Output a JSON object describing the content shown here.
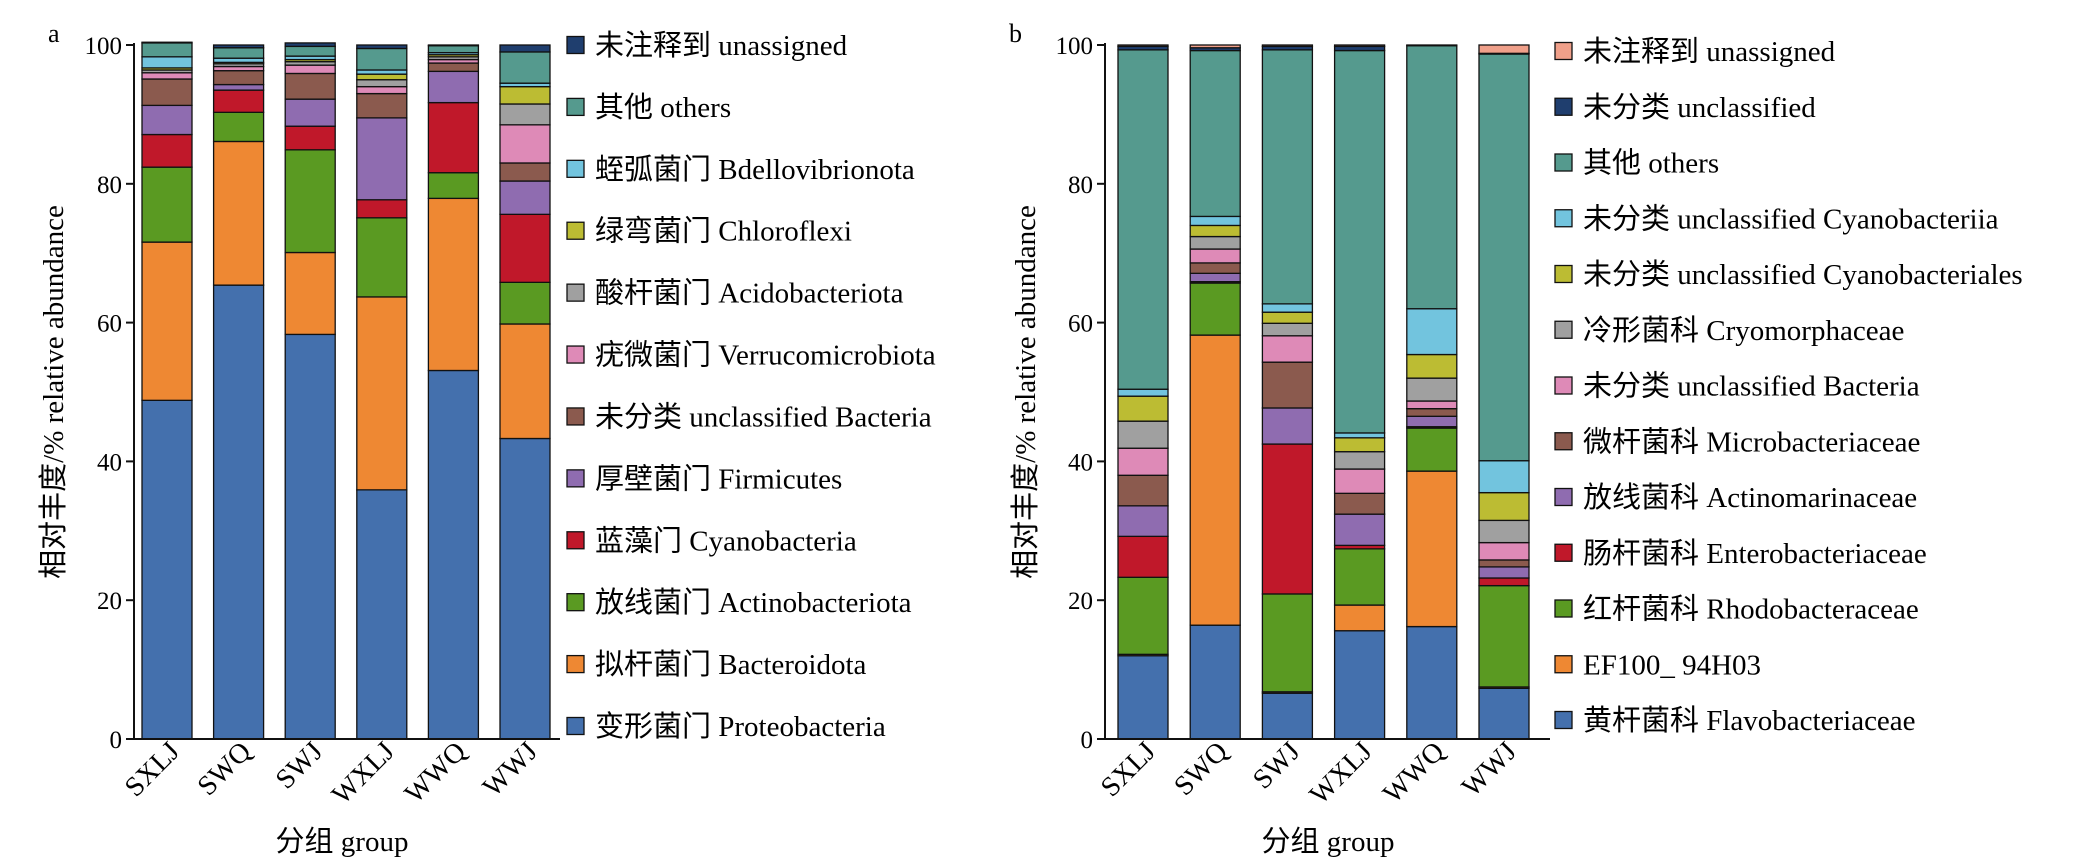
{
  "chart_data": [
    {
      "panel": "a",
      "type": "bar",
      "stacked": true,
      "categories": [
        "SXLJ",
        "SWQ",
        "SWJ",
        "WXLJ",
        "WWQ",
        "WWJ"
      ],
      "xlabel": "分组 group",
      "ylabel": "相对丰度/% relative abundance",
      "ylim": [
        0,
        100
      ],
      "yticks": [
        "0",
        "20",
        "40",
        "60",
        "80",
        "100"
      ],
      "grid": false,
      "legend_position": "right",
      "series": [
        {
          "name": "变形菌门 Proteobacteria",
          "color": "#4470ad",
          "values": [
            48.8,
            65.4,
            58.3,
            35.9,
            53.1,
            43.3
          ]
        },
        {
          "name": "拟杆菌门 Bacteroidota",
          "color": "#ee8833",
          "values": [
            22.8,
            20.7,
            11.8,
            27.8,
            24.8,
            16.5
          ]
        },
        {
          "name": "放线菌门 Actinobacteriota",
          "color": "#5a9a22",
          "values": [
            10.8,
            4.2,
            14.8,
            11.4,
            3.7,
            6.0
          ]
        },
        {
          "name": "蓝藻门 Cyanobacteria",
          "color": "#c0182a",
          "values": [
            4.7,
            3.2,
            3.4,
            2.6,
            10.1,
            9.8
          ]
        },
        {
          "name": "厚壁菌门 Firmicutes",
          "color": "#8f6cb0",
          "values": [
            4.2,
            0.8,
            3.9,
            11.8,
            4.5,
            4.8
          ]
        },
        {
          "name": "未分类 unclassified Bacteria",
          "color": "#8b5a4e",
          "values": [
            3.8,
            2.0,
            3.7,
            3.5,
            1.2,
            2.6
          ]
        },
        {
          "name": "疣微菌门 Verrucomicrobiota",
          "color": "#de8ab7",
          "values": [
            0.9,
            0.6,
            1.2,
            1.0,
            0.5,
            5.5
          ]
        },
        {
          "name": "酸杆菌门 Acidobacteriota",
          "color": "#a0a0a0",
          "values": [
            0.4,
            0.4,
            0.5,
            1.0,
            0.4,
            3.0
          ]
        },
        {
          "name": "绿弯菌门 Chloroflexi",
          "color": "#bcbc33",
          "values": [
            0.3,
            0.2,
            0.3,
            0.8,
            0.3,
            2.5
          ]
        },
        {
          "name": "蛭弧菌门 Bdellovibrionota",
          "color": "#72c4de",
          "values": [
            1.6,
            0.6,
            0.5,
            0.6,
            0.3,
            0.5
          ]
        },
        {
          "name": "其他 others",
          "color": "#559a8e",
          "values": [
            2.0,
            1.5,
            1.4,
            3.1,
            1.0,
            4.5
          ]
        },
        {
          "name": "未注释到 unassigned",
          "color": "#1f3e6e",
          "values": [
            0.1,
            0.4,
            0.5,
            0.5,
            0.1,
            1.0
          ]
        }
      ]
    },
    {
      "panel": "b",
      "type": "bar",
      "stacked": true,
      "categories": [
        "SXLJ",
        "SWQ",
        "SWJ",
        "WXLJ",
        "WWQ",
        "WWJ"
      ],
      "xlabel": "分组 group",
      "ylabel": "相对丰度/% relative abundance",
      "ylim": [
        0,
        100
      ],
      "yticks": [
        "0",
        "20",
        "40",
        "60",
        "80",
        "100"
      ],
      "grid": false,
      "legend_position": "right",
      "series": [
        {
          "name": "黄杆菌科 Flavobacteriaceae",
          "color": "#4470ad",
          "values": [
            12.0,
            16.4,
            6.6,
            15.6,
            16.2,
            7.3
          ]
        },
        {
          "name": "EF100_ 94H03",
          "color": "#ee8833",
          "values": [
            0.2,
            41.8,
            0.2,
            3.7,
            22.4,
            0.2
          ]
        },
        {
          "name": "红杆菌科 Rhodobacteraceae",
          "color": "#5a9a22",
          "values": [
            11.1,
            7.5,
            14.1,
            8.1,
            6.2,
            14.6
          ]
        },
        {
          "name": "肠杆菌科 Enterobacteriaceae",
          "color": "#c0182a",
          "values": [
            5.9,
            0.2,
            21.6,
            0.5,
            0.2,
            1.1
          ]
        },
        {
          "name": "放线菌科 Actinomarinaceae",
          "color": "#8f6cb0",
          "values": [
            4.4,
            1.2,
            5.2,
            4.5,
            1.5,
            1.6
          ]
        },
        {
          "name": "微杆菌科 Microbacteriaceae",
          "color": "#8b5a4e",
          "values": [
            4.4,
            1.5,
            6.6,
            3.0,
            1.1,
            1.0
          ]
        },
        {
          "name": "未分类 unclassified Bacteria",
          "color": "#de8ab7",
          "values": [
            3.9,
            2.0,
            3.8,
            3.5,
            1.1,
            2.5
          ]
        },
        {
          "name": "冷形菌科 Cryomorphaceae",
          "color": "#a0a0a0",
          "values": [
            3.9,
            1.8,
            1.8,
            2.5,
            3.3,
            3.2
          ]
        },
        {
          "name": "未分类 unclassified Cyanobacteriales",
          "color": "#bcbc33",
          "values": [
            3.6,
            1.6,
            1.6,
            2.0,
            3.4,
            4.0
          ]
        },
        {
          "name": "未分类 unclassified Cyanobacteriia",
          "color": "#72c4de",
          "values": [
            1.0,
            1.3,
            1.2,
            0.7,
            6.6,
            4.6
          ]
        },
        {
          "name": "其他 others",
          "color": "#559a8e",
          "values": [
            48.9,
            23.9,
            36.6,
            55.1,
            37.9,
            58.6
          ]
        },
        {
          "name": "未分类 unclassified",
          "color": "#1f3e6e",
          "values": [
            0.5,
            0.4,
            0.5,
            0.6,
            0.1,
            0.1
          ]
        },
        {
          "name": "未注释到 unassigned",
          "color": "#f0a08a",
          "values": [
            0.2,
            0.4,
            0.2,
            0.2,
            0.0,
            1.2
          ]
        }
      ]
    }
  ]
}
